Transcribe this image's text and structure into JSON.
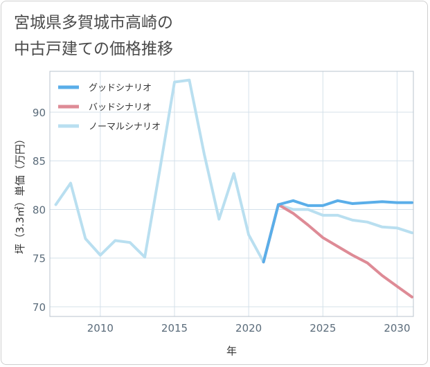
{
  "title": {
    "line1": "宮城県多賀城市高崎の",
    "line2": "中古戸建ての価格推移"
  },
  "chart_data": {
    "type": "line",
    "title": "宮城県多賀城市高崎の中古戸建ての価格推移",
    "xlabel": "年",
    "ylabel": "坪（3.3㎡）単価（万円）",
    "xlim": [
      2006.6,
      2031.1
    ],
    "ylim": [
      69,
      94.2
    ],
    "xticks": [
      2010,
      2015,
      2020,
      2025,
      2030
    ],
    "yticks": [
      70,
      75,
      80,
      85,
      90
    ],
    "grid": true,
    "legend_position": "top-left",
    "series": [
      {
        "name": "グッドシナリオ",
        "color": "#5aaee9",
        "x": [
          2021,
          2022,
          2023,
          2024,
          2025,
          2026,
          2027,
          2028,
          2029,
          2030,
          2031
        ],
        "values": [
          74.6,
          80.5,
          80.9,
          80.4,
          80.4,
          80.9,
          80.6,
          80.7,
          80.8,
          80.7,
          80.7
        ]
      },
      {
        "name": "バッドシナリオ",
        "color": "#de8b96",
        "x": [
          2021,
          2022,
          2023,
          2024,
          2025,
          2026,
          2027,
          2028,
          2029,
          2030,
          2031
        ],
        "values": [
          74.6,
          80.5,
          79.6,
          78.4,
          77.1,
          76.2,
          75.3,
          74.5,
          73.2,
          72.1,
          71.0
        ]
      },
      {
        "name": "ノーマルシナリオ",
        "color": "#b9dff0",
        "x": [
          2007,
          2008,
          2009,
          2010,
          2011,
          2012,
          2013,
          2014,
          2015,
          2016,
          2017,
          2018,
          2019,
          2020,
          2021,
          2022,
          2023,
          2024,
          2025,
          2026,
          2027,
          2028,
          2029,
          2030,
          2031
        ],
        "values": [
          80.5,
          82.7,
          77.0,
          75.3,
          76.8,
          76.6,
          75.1,
          84.0,
          93.1,
          93.3,
          85.7,
          79.0,
          83.7,
          77.4,
          74.6,
          80.5,
          80.0,
          80.0,
          79.4,
          79.4,
          78.9,
          78.7,
          78.2,
          78.1,
          77.6
        ]
      }
    ]
  }
}
